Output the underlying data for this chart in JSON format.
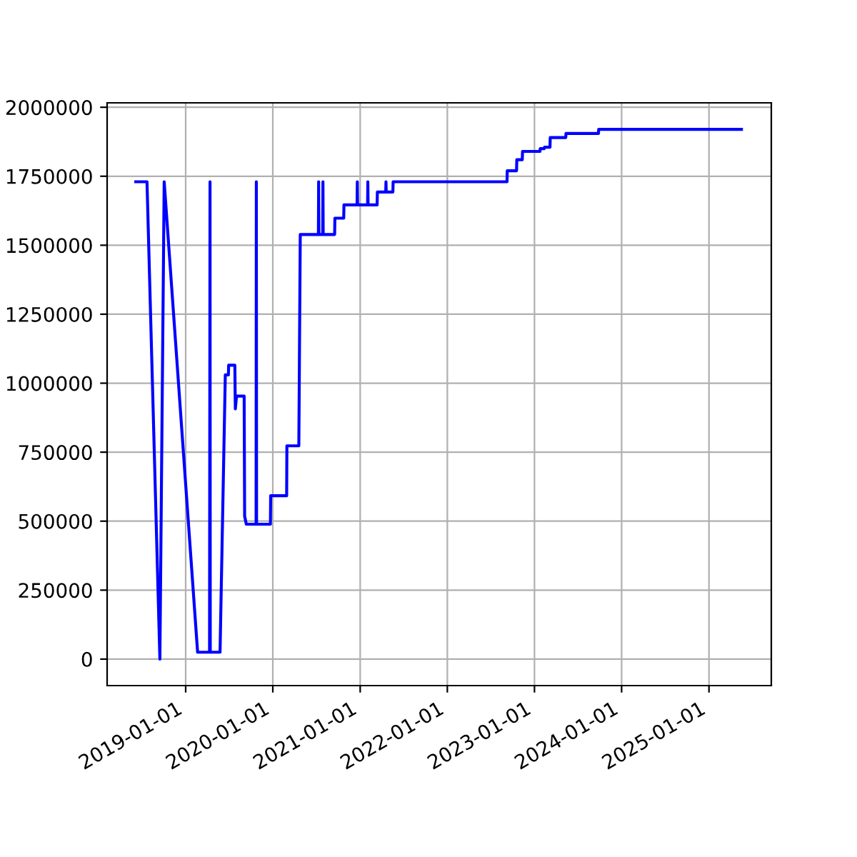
{
  "chart_data": {
    "type": "line",
    "xlim": [
      "2018-02-06",
      "2025-09-19"
    ],
    "ylim": [
      -96000,
      2016000
    ],
    "xticks": [
      "2019-01-01",
      "2020-01-01",
      "2021-01-01",
      "2022-01-01",
      "2023-01-01",
      "2024-01-01",
      "2025-01-01"
    ],
    "yticks": [
      0,
      250000,
      500000,
      750000,
      1000000,
      1250000,
      1500000,
      1750000,
      2000000
    ],
    "grid": true,
    "line_style": "solid",
    "series": [
      {
        "color": "#0000ff",
        "x": [
          "2018-06-06",
          "2018-07-23",
          "2018-09-15",
          "2018-10-03",
          "2019-02-20",
          "2019-04-11",
          "2019-04-13",
          "2019-04-14",
          "2019-05-25",
          "2019-06-16",
          "2019-06-29",
          "2019-06-30",
          "2019-07-26",
          "2019-07-28",
          "2019-08-02",
          "2019-09-03",
          "2019-09-05",
          "2019-09-12",
          "2019-10-23",
          "2019-10-24",
          "2019-10-25",
          "2019-12-22",
          "2019-12-23",
          "2020-02-28",
          "2020-02-29",
          "2020-04-19",
          "2020-04-20",
          "2020-04-25",
          "2020-07-10",
          "2020-07-11",
          "2020-07-12",
          "2020-07-28",
          "2020-07-29",
          "2020-07-30",
          "2020-09-16",
          "2020-09-17",
          "2020-10-24",
          "2020-10-25",
          "2020-12-19",
          "2020-12-20",
          "2020-12-21",
          "2021-02-01",
          "2021-02-02",
          "2021-02-03",
          "2021-03-13",
          "2021-03-14",
          "2021-04-18",
          "2021-04-19",
          "2021-04-20",
          "2021-05-18",
          "2021-05-19",
          "2022-09-08",
          "2022-09-09",
          "2022-10-18",
          "2022-10-19",
          "2022-11-11",
          "2022-11-12",
          "2023-01-24",
          "2023-01-25",
          "2023-02-11",
          "2023-02-12",
          "2023-03-07",
          "2023-03-08",
          "2023-05-12",
          "2023-05-13",
          "2023-09-26",
          "2023-09-27",
          "2025-05-17"
        ],
        "values": [
          1730000,
          1730000,
          0,
          1730000,
          25000,
          25000,
          1730000,
          25000,
          25000,
          1030000,
          1030000,
          1065000,
          1065000,
          907000,
          953000,
          953000,
          518000,
          489000,
          489000,
          1730000,
          489000,
          489000,
          592000,
          592000,
          773000,
          773000,
          896000,
          1539000,
          1539000,
          1730000,
          1539000,
          1539000,
          1730000,
          1539000,
          1539000,
          1598000,
          1598000,
          1646000,
          1646000,
          1730000,
          1646000,
          1646000,
          1730000,
          1646000,
          1646000,
          1693000,
          1693000,
          1730000,
          1693000,
          1693000,
          1730000,
          1730000,
          1770000,
          1770000,
          1810000,
          1810000,
          1840000,
          1840000,
          1850000,
          1850000,
          1855000,
          1855000,
          1890000,
          1890000,
          1905000,
          1905000,
          1920000,
          1920000
        ]
      }
    ]
  }
}
